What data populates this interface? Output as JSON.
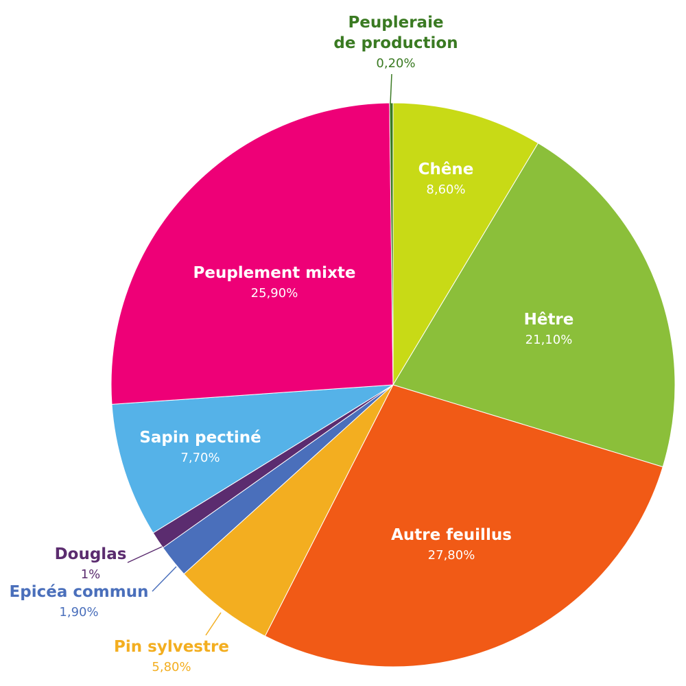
{
  "chart_data": {
    "type": "pie",
    "slices": [
      {
        "label": "Chêne",
        "value_text": "8,60%",
        "value": 8.6,
        "color": "#c8da16",
        "label_color": "#ffffff"
      },
      {
        "label": "Hêtre",
        "value_text": "21,10%",
        "value": 21.1,
        "color": "#8bbf3a",
        "label_color": "#ffffff"
      },
      {
        "label": "Autre feuillus",
        "value_text": "27,80%",
        "value": 27.8,
        "color": "#f15a16",
        "label_color": "#ffffff"
      },
      {
        "label": "Pin sylvestre",
        "value_text": "5,80%",
        "value": 5.8,
        "color": "#f3ae20",
        "label_color": "#f3ae20"
      },
      {
        "label": "Epicéa commun",
        "value_text": "1,90%",
        "value": 1.9,
        "color": "#4a6fbb",
        "label_color": "#4a6fbb"
      },
      {
        "label": "Douglas",
        "value_text": "1%",
        "value": 1.0,
        "color": "#5b2c6f",
        "label_color": "#5b2c6f"
      },
      {
        "label": "Sapin pectiné",
        "value_text": "7,70%",
        "value": 7.7,
        "color": "#55b2e8",
        "label_color": "#ffffff"
      },
      {
        "label": "Peuplement mixte",
        "value_text": "25,90%",
        "value": 25.9,
        "color": "#ee0077",
        "label_color": "#ffffff"
      },
      {
        "label": "Peupleraie de production",
        "value_text": "0,20%",
        "value": 0.2,
        "color": "#3a7a22",
        "label_color": "#3a7a22"
      }
    ]
  }
}
